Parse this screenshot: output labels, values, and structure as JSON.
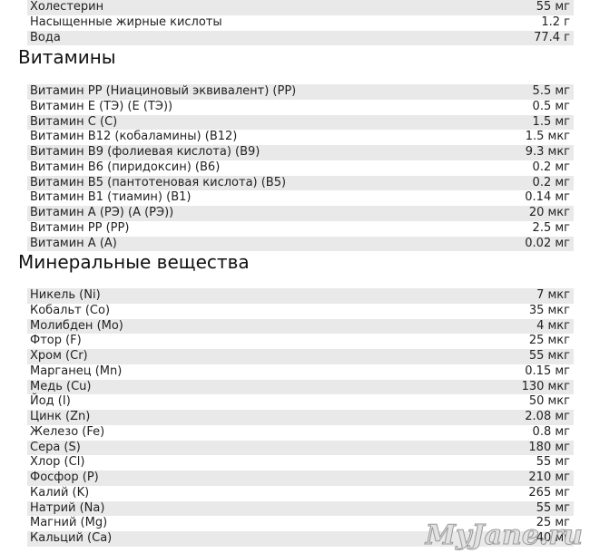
{
  "sections": [
    {
      "rows": [
        {
          "name": "Холестерин",
          "value": "55 мг"
        },
        {
          "name": "Насыщенные жирные кислоты",
          "value": "1.2 г"
        },
        {
          "name": "Вода",
          "value": "77.4 г"
        }
      ]
    },
    {
      "title": "Витамины",
      "rows": [
        {
          "name": "Витамин PP (Ниациновый эквивалент) (PP)",
          "value": "5.5 мг"
        },
        {
          "name": "Витамин E (ТЭ) (E (ТЭ))",
          "value": "0.5 мг"
        },
        {
          "name": "Витамин C (C)",
          "value": "1.5 мг"
        },
        {
          "name": "Витамин B12 (кобаламины) (B12)",
          "value": "1.5 мкг"
        },
        {
          "name": "Витамин B9 (фолиевая кислота) (B9)",
          "value": "9.3 мкг"
        },
        {
          "name": "Витамин B6 (пиридоксин) (B6)",
          "value": "0.2 мг"
        },
        {
          "name": "Витамин B5 (пантотеновая кислота) (B5)",
          "value": "0.2 мг"
        },
        {
          "name": "Витамин B1 (тиамин) (B1)",
          "value": "0.14 мг"
        },
        {
          "name": "Витамин A (РЭ) (A (РЭ))",
          "value": "20 мкг"
        },
        {
          "name": "Витамин PP (PP)",
          "value": "2.5 мг"
        },
        {
          "name": "Витамин A (A)",
          "value": "0.02 мг"
        }
      ]
    },
    {
      "title": "Минеральные вещества",
      "rows": [
        {
          "name": "Никель (Ni)",
          "value": "7 мкг"
        },
        {
          "name": "Кобальт (Co)",
          "value": "35 мкг"
        },
        {
          "name": "Молибден (Mo)",
          "value": "4 мкг"
        },
        {
          "name": "Фтор (F)",
          "value": "25 мкг"
        },
        {
          "name": "Хром (Cr)",
          "value": "55 мкг"
        },
        {
          "name": "Марганец (Mn)",
          "value": "0.15 мг"
        },
        {
          "name": "Медь (Cu)",
          "value": "130 мкг"
        },
        {
          "name": "Йод (I)",
          "value": "50 мкг"
        },
        {
          "name": "Цинк (Zn)",
          "value": "2.08 мг"
        },
        {
          "name": "Железо (Fe)",
          "value": "0.8 мг"
        },
        {
          "name": "Сера (S)",
          "value": "180 мг"
        },
        {
          "name": "Хлор (Cl)",
          "value": "55 мг"
        },
        {
          "name": "Фосфор (P)",
          "value": "210 мг"
        },
        {
          "name": "Калий (K)",
          "value": "265 мг"
        },
        {
          "name": "Натрий (Na)",
          "value": "55 мг"
        },
        {
          "name": "Магний (Mg)",
          "value": "25 мг"
        },
        {
          "name": "Кальций (Ca)",
          "value": "40 мг"
        }
      ]
    }
  ],
  "watermark": "MyJane.ru"
}
